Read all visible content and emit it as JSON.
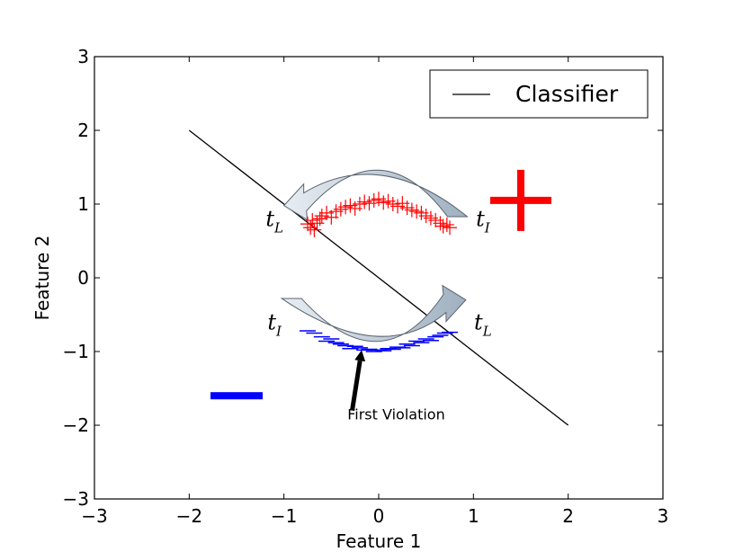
{
  "chart_data": {
    "type": "scatter",
    "xlabel": "Feature 1",
    "ylabel": "Feature 2",
    "xlim": [
      -3,
      3
    ],
    "ylim": [
      -3,
      3
    ],
    "xticks": [
      -3,
      -2,
      -1,
      0,
      1,
      2,
      3
    ],
    "yticks": [
      -3,
      -2,
      -1,
      0,
      1,
      2,
      3
    ],
    "xtick_labels": [
      "−3",
      "−2",
      "−1",
      "0",
      "1",
      "2",
      "3"
    ],
    "ytick_labels": [
      "−3",
      "−2",
      "−1",
      "0",
      "1",
      "2",
      "3"
    ],
    "grid": false,
    "legend": {
      "placement": "top-right",
      "entries": [
        "Classifier"
      ]
    },
    "classifier_line": {
      "name": "Classifier",
      "color": "#000000",
      "x": [
        -2,
        2
      ],
      "y": [
        2,
        -2
      ]
    },
    "series": [
      {
        "marker": "plus",
        "color": "#ff0000",
        "x": [
          -0.75,
          -0.72,
          -0.7,
          -0.68,
          -0.65,
          -0.62,
          -0.6,
          -0.55,
          -0.5,
          -0.45,
          -0.4,
          -0.35,
          -0.3,
          -0.25,
          -0.2,
          -0.15,
          -0.1,
          -0.05,
          0,
          0.05,
          0.1,
          0.15,
          0.2,
          0.25,
          0.3,
          0.35,
          0.4,
          0.45,
          0.5,
          0.55,
          0.6,
          0.65,
          0.68,
          0.72,
          0.75
        ],
        "y": [
          0.73,
          0.68,
          0.78,
          0.65,
          0.74,
          0.8,
          0.84,
          0.88,
          0.82,
          0.9,
          0.93,
          0.96,
          0.98,
          0.94,
          1.0,
          1.03,
          1.01,
          1.05,
          1.07,
          1.02,
          1.04,
          1.0,
          0.97,
          1.01,
          0.95,
          0.92,
          0.9,
          0.88,
          0.84,
          0.81,
          0.78,
          0.74,
          0.7,
          0.72,
          0.68
        ]
      },
      {
        "marker": "minus",
        "color": "#0000ff",
        "x": [
          -0.75,
          -0.68,
          -0.6,
          -0.55,
          -0.5,
          -0.45,
          -0.4,
          -0.35,
          -0.3,
          -0.25,
          -0.2,
          -0.15,
          -0.1,
          -0.05,
          0,
          0.05,
          0.1,
          0.15,
          0.2,
          0.25,
          0.3,
          0.35,
          0.4,
          0.45,
          0.5,
          0.55,
          0.6,
          0.65,
          0.7,
          0.75
        ],
        "y": [
          -0.72,
          -0.75,
          -0.8,
          -0.86,
          -0.83,
          -0.88,
          -0.9,
          -0.92,
          -0.96,
          -0.93,
          -0.95,
          -0.98,
          -0.97,
          -1.0,
          -0.98,
          -0.99,
          -0.96,
          -0.97,
          -0.94,
          -0.95,
          -0.9,
          -0.92,
          -0.86,
          -0.88,
          -0.83,
          -0.85,
          -0.8,
          -0.78,
          -0.75,
          -0.74
        ]
      }
    ],
    "class_symbols": [
      {
        "symbol": "plus",
        "color": "#ff0000",
        "x": 1.5,
        "y": 1.05
      },
      {
        "symbol": "minus",
        "color": "#0000ff",
        "x": -1.5,
        "y": -1.6
      }
    ],
    "annotations": [
      {
        "text": "First Violation",
        "x": -0.33,
        "y": -1.92,
        "arrow_to": [
          -0.18,
          -0.98
        ],
        "arrow_from": [
          -0.28,
          -1.8
        ]
      }
    ],
    "t_labels": [
      {
        "base": "t",
        "sub": "L",
        "x": -1.1,
        "y": 0.7
      },
      {
        "base": "t",
        "sub": "I",
        "x": 1.1,
        "y": 0.7
      },
      {
        "base": "t",
        "sub": "I",
        "x": -1.1,
        "y": -0.7
      },
      {
        "base": "t",
        "sub": "L",
        "x": 1.1,
        "y": -0.7
      }
    ],
    "curved_arrows": [
      {
        "direction": "right-to-left",
        "from": [
          0.83,
          0.83
        ],
        "via": [
          0.02,
          1.43
        ],
        "to": [
          -1.0,
          0.98
        ]
      },
      {
        "direction": "left-to-right",
        "from": [
          -0.92,
          -0.28
        ],
        "via": [
          0.03,
          -0.85
        ],
        "to": [
          0.92,
          -0.3
        ]
      }
    ],
    "colors": {
      "plus": "#ff0000",
      "minus": "#0000ff",
      "arrow_fill": "#b2c0cd",
      "arrow_stroke": "#5a6470"
    }
  }
}
